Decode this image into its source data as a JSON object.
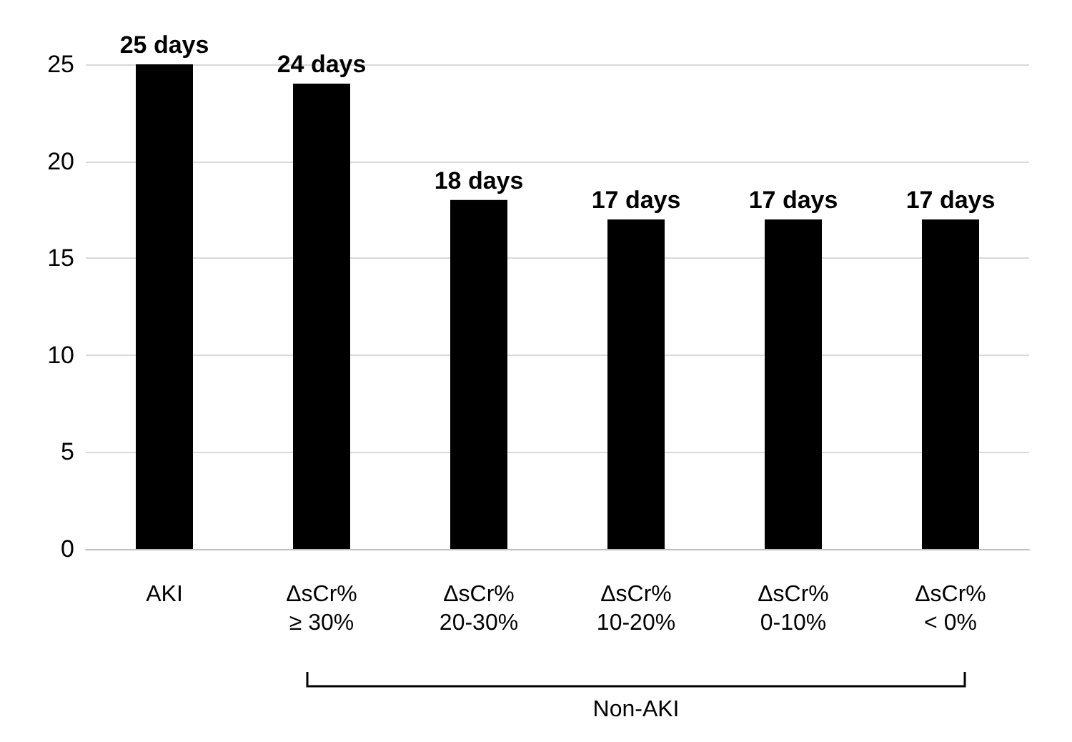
{
  "chart_data": {
    "type": "bar",
    "categories": [
      "AKI",
      "ΔsCr%\n≥ 30%",
      "ΔsCr%\n20-30%",
      "ΔsCr%\n10-20%",
      "ΔsCr%\n0-10%",
      "ΔsCr%\n< 0%"
    ],
    "values": [
      25,
      24,
      18,
      17,
      17,
      17
    ],
    "value_labels": [
      "25 days",
      "24 days",
      "18 days",
      "17 days",
      "17 days",
      "17 days"
    ],
    "color": "#000000",
    "ylim": [
      0,
      25
    ],
    "yticks": [
      0,
      5,
      10,
      15,
      20,
      25
    ],
    "grid": "y",
    "annotations": [
      "Non-AKI"
    ]
  }
}
